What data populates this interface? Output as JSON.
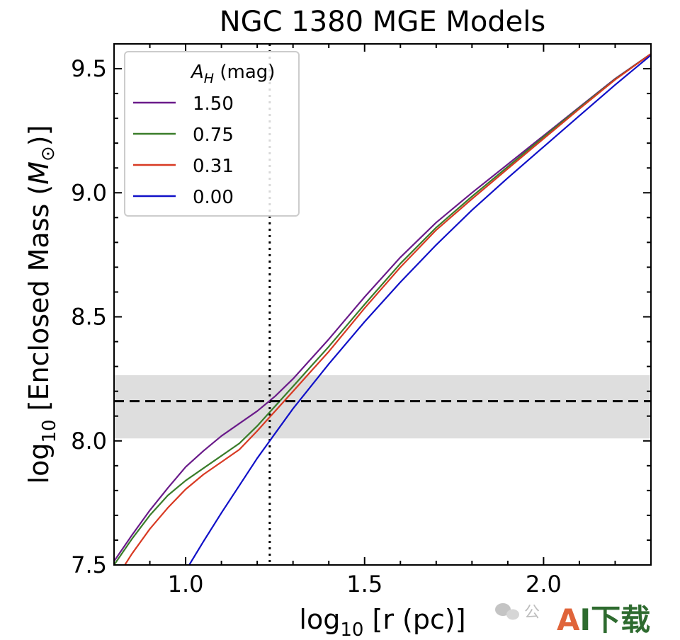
{
  "chart_data": {
    "type": "line",
    "title": "NGC 1380 MGE Models",
    "xlabel_main": "log",
    "xlabel_sub": "10",
    "xlabel_rest": " [r (pc)]",
    "ylabel_main": "log",
    "ylabel_sub": "10",
    "ylabel_rest": " [Enclosed Mass (",
    "ylabel_mass": "M",
    "ylabel_sun": "⊙",
    "ylabel_close": ")]",
    "xlim": [
      0.8,
      2.3
    ],
    "ylim": [
      7.5,
      9.6
    ],
    "xticks": [
      {
        "value": 1.0,
        "label": "1.0"
      },
      {
        "value": 1.5,
        "label": "1.5"
      },
      {
        "value": 2.0,
        "label": "2.0"
      }
    ],
    "yticks": [
      {
        "value": 7.5,
        "label": "7.5"
      },
      {
        "value": 8.0,
        "label": "8.0"
      },
      {
        "value": 8.5,
        "label": "8.5"
      },
      {
        "value": 9.0,
        "label": "9.0"
      },
      {
        "value": 9.5,
        "label": "9.5"
      }
    ],
    "xminor_step": 0.1,
    "yminor_step": 0.1,
    "legend": {
      "title_symbol": "A",
      "title_sub": "H",
      "title_rest": " (mag)",
      "placement": "upper-left"
    },
    "band": {
      "ymin": 8.01,
      "ymax": 8.265,
      "color": "#dedede"
    },
    "hline": {
      "y": 8.16,
      "style": "dashed",
      "color": "#000000"
    },
    "vline": {
      "x": 1.235,
      "style": "dotted",
      "color": "#000000"
    },
    "series": [
      {
        "name": "1.50",
        "color": "#6a1b8a",
        "points": [
          [
            0.8,
            7.515
          ],
          [
            0.85,
            7.62
          ],
          [
            0.9,
            7.72
          ],
          [
            0.95,
            7.81
          ],
          [
            1.0,
            7.895
          ],
          [
            1.05,
            7.96
          ],
          [
            1.1,
            8.02
          ],
          [
            1.15,
            8.07
          ],
          [
            1.2,
            8.12
          ],
          [
            1.25,
            8.18
          ],
          [
            1.3,
            8.25
          ],
          [
            1.35,
            8.33
          ],
          [
            1.4,
            8.41
          ],
          [
            1.5,
            8.58
          ],
          [
            1.6,
            8.74
          ],
          [
            1.7,
            8.88
          ],
          [
            1.8,
            9.0
          ],
          [
            1.9,
            9.115
          ],
          [
            2.0,
            9.23
          ],
          [
            2.1,
            9.345
          ],
          [
            2.2,
            9.46
          ],
          [
            2.3,
            9.56
          ]
        ]
      },
      {
        "name": "0.75",
        "color": "#3a7d2a",
        "points": [
          [
            0.8,
            7.5
          ],
          [
            0.85,
            7.605
          ],
          [
            0.9,
            7.7
          ],
          [
            0.95,
            7.78
          ],
          [
            1.0,
            7.84
          ],
          [
            1.05,
            7.89
          ],
          [
            1.1,
            7.94
          ],
          [
            1.15,
            7.99
          ],
          [
            1.2,
            8.06
          ],
          [
            1.25,
            8.14
          ],
          [
            1.3,
            8.22
          ],
          [
            1.35,
            8.3
          ],
          [
            1.4,
            8.38
          ],
          [
            1.5,
            8.55
          ],
          [
            1.6,
            8.715
          ],
          [
            1.7,
            8.86
          ],
          [
            1.8,
            8.985
          ],
          [
            1.9,
            9.105
          ],
          [
            2.0,
            9.225
          ],
          [
            2.1,
            9.342
          ],
          [
            2.2,
            9.458
          ],
          [
            2.3,
            9.56
          ]
        ]
      },
      {
        "name": "0.31",
        "color": "#d83a23",
        "points": [
          [
            0.83,
            7.5
          ],
          [
            0.85,
            7.545
          ],
          [
            0.9,
            7.645
          ],
          [
            0.95,
            7.73
          ],
          [
            1.0,
            7.805
          ],
          [
            1.05,
            7.865
          ],
          [
            1.1,
            7.915
          ],
          [
            1.15,
            7.965
          ],
          [
            1.2,
            8.04
          ],
          [
            1.25,
            8.12
          ],
          [
            1.3,
            8.2
          ],
          [
            1.35,
            8.28
          ],
          [
            1.4,
            8.36
          ],
          [
            1.5,
            8.535
          ],
          [
            1.6,
            8.7
          ],
          [
            1.7,
            8.85
          ],
          [
            1.8,
            8.975
          ],
          [
            1.9,
            9.097
          ],
          [
            2.0,
            9.218
          ],
          [
            2.1,
            9.338
          ],
          [
            2.2,
            9.456
          ],
          [
            2.3,
            9.56
          ]
        ]
      },
      {
        "name": "0.00",
        "color": "#1010c8",
        "points": [
          [
            1.01,
            7.5
          ],
          [
            1.05,
            7.595
          ],
          [
            1.1,
            7.71
          ],
          [
            1.15,
            7.82
          ],
          [
            1.2,
            7.93
          ],
          [
            1.25,
            8.03
          ],
          [
            1.3,
            8.13
          ],
          [
            1.35,
            8.22
          ],
          [
            1.4,
            8.31
          ],
          [
            1.5,
            8.48
          ],
          [
            1.6,
            8.64
          ],
          [
            1.7,
            8.79
          ],
          [
            1.8,
            8.93
          ],
          [
            1.9,
            9.06
          ],
          [
            2.0,
            9.185
          ],
          [
            2.1,
            9.31
          ],
          [
            2.2,
            9.435
          ],
          [
            2.3,
            9.555
          ]
        ]
      }
    ]
  },
  "watermark": {
    "wechat_text": "公",
    "logo_text_a": "A",
    "logo_text_rest": "I下载"
  }
}
